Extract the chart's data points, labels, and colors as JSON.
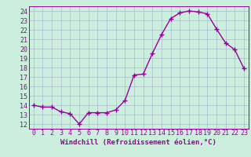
{
  "x": [
    0,
    1,
    2,
    3,
    4,
    5,
    6,
    7,
    8,
    9,
    10,
    11,
    12,
    13,
    14,
    15,
    16,
    17,
    18,
    19,
    20,
    21,
    22,
    23
  ],
  "y": [
    14.0,
    13.8,
    13.8,
    13.3,
    13.1,
    12.0,
    13.2,
    13.2,
    13.2,
    13.5,
    14.5,
    17.2,
    17.3,
    19.5,
    21.5,
    23.2,
    23.8,
    24.0,
    23.9,
    23.7,
    22.1,
    20.6,
    19.9,
    17.9
  ],
  "line_color": "#990099",
  "marker": "+",
  "marker_size": 4,
  "bg_color": "#cceedd",
  "grid_color": "#aabbcc",
  "xlabel": "Windchill (Refroidissement éolien,°C)",
  "xlabel_fontsize": 6.5,
  "tick_fontsize": 6.0,
  "ylim": [
    11.5,
    24.5
  ],
  "yticks": [
    12,
    13,
    14,
    15,
    16,
    17,
    18,
    19,
    20,
    21,
    22,
    23,
    24
  ],
  "xticks": [
    0,
    1,
    2,
    3,
    4,
    5,
    6,
    7,
    8,
    9,
    10,
    11,
    12,
    13,
    14,
    15,
    16,
    17,
    18,
    19,
    20,
    21,
    22,
    23
  ],
  "line_width": 1.0
}
